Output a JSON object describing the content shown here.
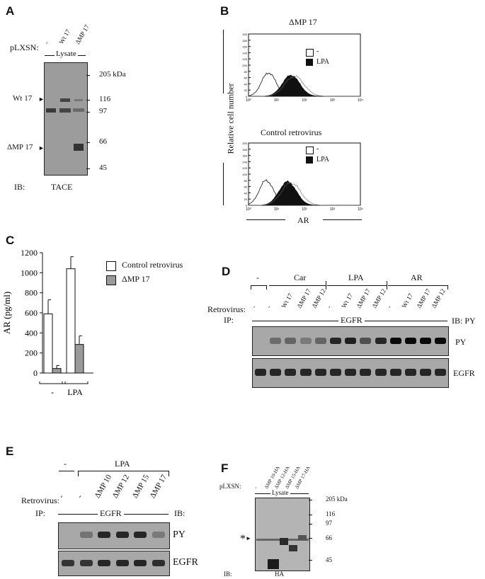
{
  "panels": {
    "A": {
      "label": "A",
      "pLXSN": "pLXSN:",
      "lanes": [
        "-",
        "Wt 17",
        "ΔMP 17"
      ],
      "lysate": "Lysate",
      "markers": [
        "205 kDa",
        "116",
        "97",
        "66",
        "45"
      ],
      "left_labels": [
        "Wt 17",
        "ΔMP 17"
      ],
      "ib": "IB:",
      "ib_target": "TACE"
    },
    "B": {
      "label": "B",
      "top_title": "ΔMP 17",
      "bottom_title": "Control retrovirus",
      "ylabel": "Relative cell number",
      "xlabel": "AR",
      "legend": [
        "-",
        "LPA"
      ],
      "yticks": [
        "200",
        "180",
        "160",
        "140",
        "120",
        "100",
        "80",
        "60",
        "40",
        "20",
        "0"
      ],
      "xticks": [
        "10⁰",
        "10¹",
        "10²",
        "10³",
        "10⁴"
      ]
    },
    "C": {
      "label": "C",
      "legend": [
        "Control retrovirus",
        "ΔMP 17"
      ],
      "groups": [
        "-",
        "LPA"
      ]
    },
    "D": {
      "label": "D",
      "groups": [
        "-",
        "Car",
        "LPA",
        "AR"
      ],
      "retrovirus": "Retrovirus:",
      "lanes": [
        "-",
        "-",
        "Wt 17",
        "ΔMP 17",
        "ΔMP 12",
        "-",
        "Wt 17",
        "ΔMP 17",
        "ΔMP 12",
        "-",
        "Wt 17",
        "ΔMP 17",
        "ΔMP 12"
      ],
      "ip": "IP:",
      "ip_target": "EGFR",
      "ib": "IB: PY",
      "rows": [
        "PY",
        "EGFR"
      ]
    },
    "E": {
      "label": "E",
      "groups": [
        "-",
        "LPA"
      ],
      "retrovirus": "Retrovirus:",
      "lanes": [
        "-",
        "-",
        "ΔMP 10",
        "ΔMP 12",
        "ΔMP 15",
        "ΔMP 17"
      ],
      "ip": "IP:",
      "ip_target": "EGFR",
      "ib": "IB:",
      "rows": [
        "PY",
        "EGFR"
      ]
    },
    "F": {
      "label": "F",
      "pLXSN": "pLXSN:",
      "lanes": [
        "-",
        "ΔMP 10-HA",
        "ΔMP 12-HA",
        "ΔMP 15-HA",
        "ΔMP 17-HA"
      ],
      "lysate": "Lysate",
      "markers": [
        "205 kDa",
        "116",
        "97",
        "66",
        "45"
      ],
      "star": "*",
      "ib": "IB:",
      "ib_target": "HA"
    }
  },
  "chart_data": {
    "type": "bar",
    "categories": [
      "-",
      "LPA"
    ],
    "series": [
      {
        "name": "Control retrovirus",
        "values": [
          590,
          1040
        ],
        "errors": [
          140,
          120
        ],
        "color": "#ffffff"
      },
      {
        "name": "ΔMP 17",
        "values": [
          45,
          285
        ],
        "errors": [
          30,
          85
        ],
        "color": "#9a9a9a"
      }
    ],
    "ylabel": "AR (pg/ml)",
    "ylim": [
      0,
      1200
    ],
    "yticks": [
      0,
      200,
      400,
      600,
      800,
      1000,
      1200
    ]
  }
}
